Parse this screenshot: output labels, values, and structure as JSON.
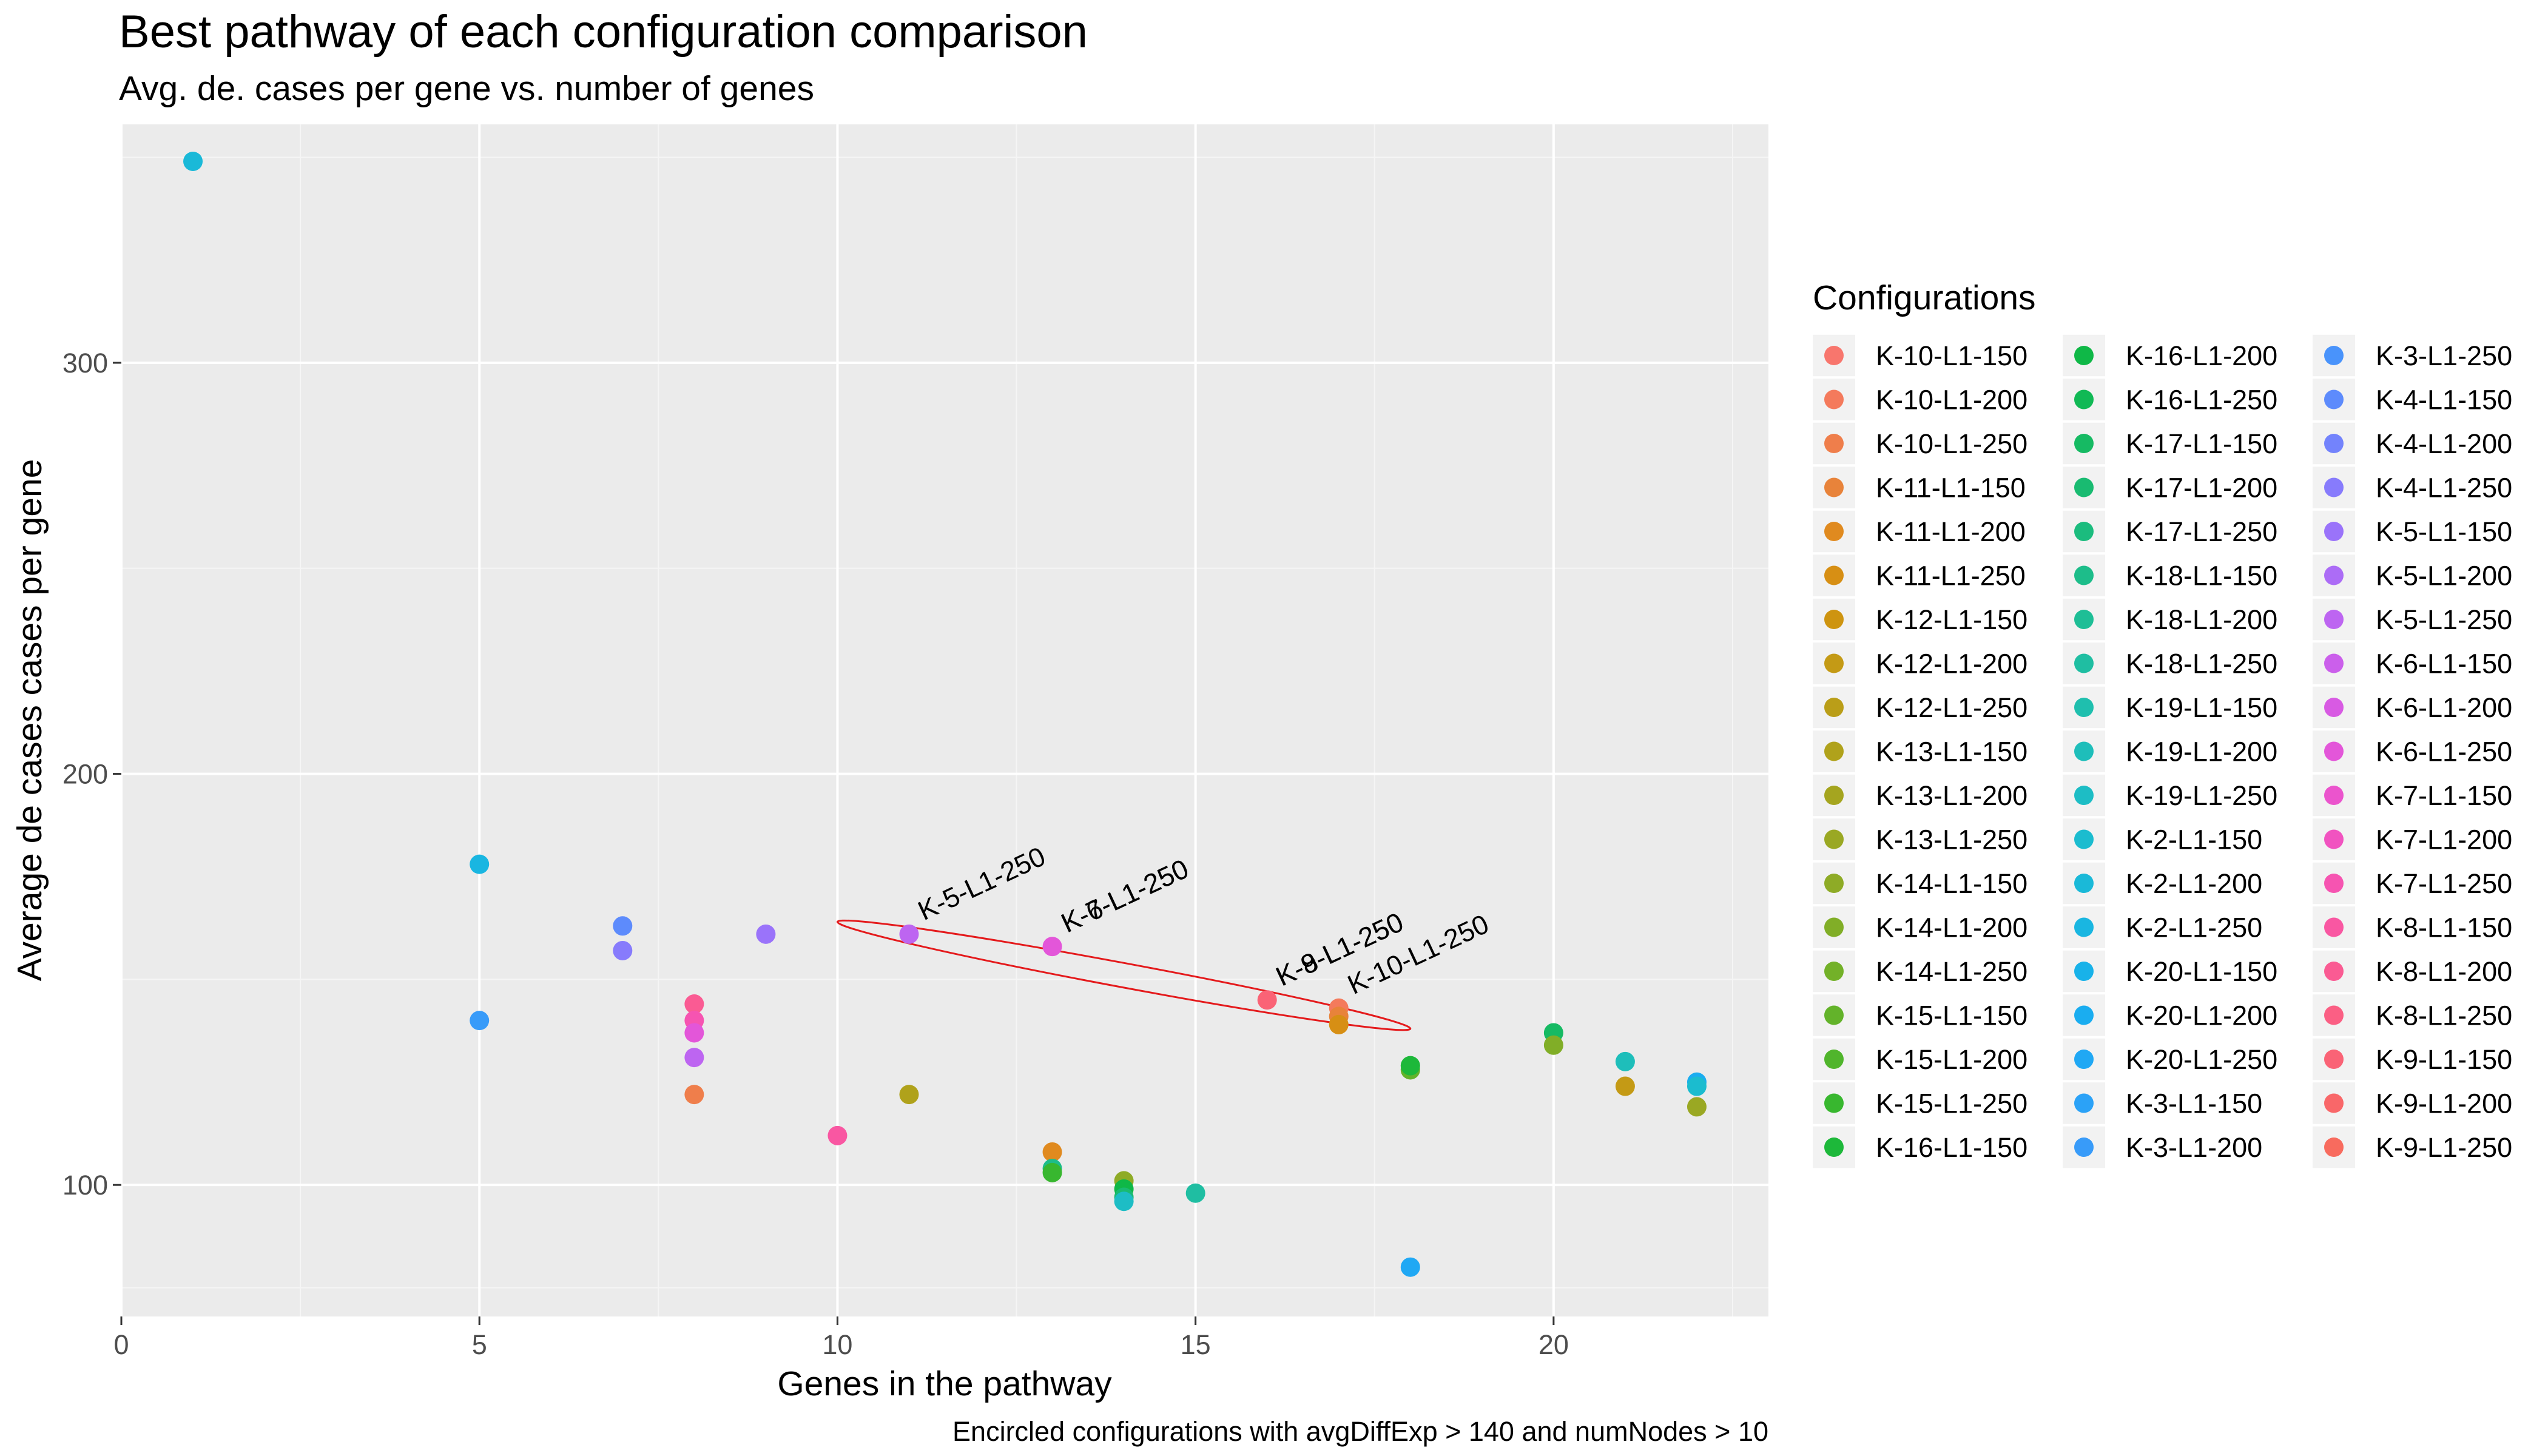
{
  "chart_data": {
    "type": "scatter",
    "title": "Best pathway of each configuration comparison",
    "subtitle": "Avg. de. cases per gene vs. number of genes",
    "xlabel": "Genes in the pathway",
    "ylabel": "Average de cases cases per gene",
    "caption": "Encircled configurations with avgDiffExp > 140 and numNodes > 10",
    "xlim": [
      0,
      23
    ],
    "ylim": [
      68,
      358
    ],
    "x_ticks": [
      0,
      5,
      10,
      15,
      20
    ],
    "x_tick_labels": [
      "0",
      "5",
      "10",
      "15",
      "20"
    ],
    "y_ticks": [
      100,
      200,
      300
    ],
    "y_tick_labels": [
      "100",
      "200",
      "300"
    ],
    "grid": true,
    "legend": {
      "title": "Configurations",
      "placement": "right",
      "columns": 3,
      "entries": [
        {
          "label": "K-10-L1-150",
          "color": "#F8766D"
        },
        {
          "label": "K-10-L1-200",
          "color": "#F47A5C"
        },
        {
          "label": "K-10-L1-250",
          "color": "#EF7E4B"
        },
        {
          "label": "K-11-L1-150",
          "color": "#E8833A"
        },
        {
          "label": "K-11-L1-200",
          "color": "#E08A1F"
        },
        {
          "label": "K-11-L1-250",
          "color": "#D78F14"
        },
        {
          "label": "K-12-L1-150",
          "color": "#CE9410"
        },
        {
          "label": "K-12-L1-200",
          "color": "#C49A15"
        },
        {
          "label": "K-12-L1-250",
          "color": "#BA9E18"
        },
        {
          "label": "K-13-L1-150",
          "color": "#B0A21B"
        },
        {
          "label": "K-13-L1-200",
          "color": "#A5A51F"
        },
        {
          "label": "K-13-L1-250",
          "color": "#9AA823"
        },
        {
          "label": "K-14-L1-150",
          "color": "#8EAB26"
        },
        {
          "label": "K-14-L1-200",
          "color": "#81AE27"
        },
        {
          "label": "K-14-L1-250",
          "color": "#73B128"
        },
        {
          "label": "K-15-L1-150",
          "color": "#63B32A"
        },
        {
          "label": "K-15-L1-200",
          "color": "#50B52C"
        },
        {
          "label": "K-15-L1-250",
          "color": "#38B72F"
        },
        {
          "label": "K-16-L1-150",
          "color": "#1DB83A"
        },
        {
          "label": "K-16-L1-200",
          "color": "#0FB847"
        },
        {
          "label": "K-16-L1-250",
          "color": "#11B955"
        },
        {
          "label": "K-17-L1-150",
          "color": "#16BA63"
        },
        {
          "label": "K-17-L1-200",
          "color": "#19BB71"
        },
        {
          "label": "K-17-L1-250",
          "color": "#1BBC7E"
        },
        {
          "label": "K-18-L1-150",
          "color": "#1DBD8A"
        },
        {
          "label": "K-18-L1-200",
          "color": "#1EBE96"
        },
        {
          "label": "K-18-L1-250",
          "color": "#1FBEA2"
        },
        {
          "label": "K-19-L1-150",
          "color": "#1FBFAE"
        },
        {
          "label": "K-19-L1-200",
          "color": "#1EBEBA"
        },
        {
          "label": "K-19-L1-250",
          "color": "#1DBDC5"
        },
        {
          "label": "K-2-L1-150",
          "color": "#1BBCCF"
        },
        {
          "label": "K-2-L1-200",
          "color": "#1AB9D8"
        },
        {
          "label": "K-2-L1-250",
          "color": "#19B6E1"
        },
        {
          "label": "K-20-L1-150",
          "color": "#18B2E9"
        },
        {
          "label": "K-20-L1-200",
          "color": "#1AADF0"
        },
        {
          "label": "K-20-L1-250",
          "color": "#20A8F4"
        },
        {
          "label": "K-3-L1-150",
          "color": "#2BA2F7"
        },
        {
          "label": "K-3-L1-200",
          "color": "#389BF9"
        },
        {
          "label": "K-3-L1-250",
          "color": "#4993FB"
        },
        {
          "label": "K-4-L1-150",
          "color": "#5D8BFC"
        },
        {
          "label": "K-4-L1-200",
          "color": "#7383FC"
        },
        {
          "label": "K-4-L1-250",
          "color": "#877BFC"
        },
        {
          "label": "K-5-L1-150",
          "color": "#9A73FA"
        },
        {
          "label": "K-5-L1-200",
          "color": "#AC6CF6"
        },
        {
          "label": "K-5-L1-250",
          "color": "#BD65F1"
        },
        {
          "label": "K-6-L1-150",
          "color": "#CB5FEB"
        },
        {
          "label": "K-6-L1-200",
          "color": "#D85AE3"
        },
        {
          "label": "K-6-L1-250",
          "color": "#E356D9"
        },
        {
          "label": "K-7-L1-150",
          "color": "#EB54CD"
        },
        {
          "label": "K-7-L1-200",
          "color": "#F153C0"
        },
        {
          "label": "K-7-L1-250",
          "color": "#F654B1"
        },
        {
          "label": "K-8-L1-150",
          "color": "#F957A2"
        },
        {
          "label": "K-8-L1-200",
          "color": "#FA5B93"
        },
        {
          "label": "K-8-L1-250",
          "color": "#FB5F84"
        },
        {
          "label": "K-9-L1-150",
          "color": "#FA6376"
        },
        {
          "label": "K-9-L1-200",
          "color": "#F96769"
        },
        {
          "label": "K-9-L1-250",
          "color": "#F86B5E"
        }
      ]
    },
    "points": [
      {
        "x": 1,
        "y": 349,
        "color": "#1AB9D8"
      },
      {
        "x": 5,
        "y": 178,
        "color": "#19B6E1"
      },
      {
        "x": 5,
        "y": 140,
        "color": "#389BF9"
      },
      {
        "x": 7,
        "y": 163,
        "color": "#5D8BFC"
      },
      {
        "x": 7,
        "y": 157,
        "color": "#877BFC"
      },
      {
        "x": 8,
        "y": 144,
        "color": "#FA5B93"
      },
      {
        "x": 8,
        "y": 140,
        "color": "#F654B1"
      },
      {
        "x": 8,
        "y": 137,
        "color": "#E356D9"
      },
      {
        "x": 8,
        "y": 131,
        "color": "#BD65F1"
      },
      {
        "x": 8,
        "y": 122,
        "color": "#EF7E4B"
      },
      {
        "x": 9,
        "y": 161,
        "color": "#9A73FA"
      },
      {
        "x": 10,
        "y": 112,
        "color": "#F957A2"
      },
      {
        "x": 11,
        "y": 161,
        "color": "#BD65F1"
      },
      {
        "x": 11,
        "y": 122,
        "color": "#B0A21B"
      },
      {
        "x": 13,
        "y": 158,
        "color": "#E356D9"
      },
      {
        "x": 13,
        "y": 108,
        "color": "#E08A1F"
      },
      {
        "x": 13,
        "y": 104,
        "color": "#1DBD8A"
      },
      {
        "x": 13,
        "y": 103,
        "color": "#38B72F"
      },
      {
        "x": 14,
        "y": 101,
        "color": "#8EAB26"
      },
      {
        "x": 14,
        "y": 99,
        "color": "#0FB847"
      },
      {
        "x": 14,
        "y": 97,
        "color": "#19BB71"
      },
      {
        "x": 14,
        "y": 96,
        "color": "#1DBDC5"
      },
      {
        "x": 15,
        "y": 98,
        "color": "#1FBEA2"
      },
      {
        "x": 16,
        "y": 145,
        "color": "#FA6376"
      },
      {
        "x": 17,
        "y": 143,
        "color": "#F47A5C"
      },
      {
        "x": 17,
        "y": 141,
        "color": "#E8833A"
      },
      {
        "x": 17,
        "y": 139,
        "color": "#D78F14"
      },
      {
        "x": 18,
        "y": 128,
        "color": "#63B32A"
      },
      {
        "x": 18,
        "y": 129,
        "color": "#1DB83A"
      },
      {
        "x": 18,
        "y": 80,
        "color": "#20A8F4"
      },
      {
        "x": 20,
        "y": 137,
        "color": "#16BA63"
      },
      {
        "x": 20,
        "y": 134,
        "color": "#81AE27"
      },
      {
        "x": 21,
        "y": 130,
        "color": "#1EBEBA"
      },
      {
        "x": 21,
        "y": 124,
        "color": "#C49A15"
      },
      {
        "x": 22,
        "y": 125,
        "color": "#1AADF0"
      },
      {
        "x": 22,
        "y": 124,
        "color": "#1BBCCF"
      },
      {
        "x": 22,
        "y": 119,
        "color": "#9AA823"
      }
    ],
    "annotations": [
      {
        "text": "K-5-L1-250",
        "x": 11,
        "y": 161
      },
      {
        "text": "K-6-L1-250",
        "x": 13,
        "y": 158
      },
      {
        "text": "K-7-L1-250",
        "x": 13,
        "y": 158
      },
      {
        "text": "K-8-L1-250",
        "x": 16,
        "y": 145
      },
      {
        "text": "K-9-L1-250",
        "x": 16,
        "y": 145
      },
      {
        "text": "K-10-L1-250",
        "x": 17,
        "y": 143
      }
    ],
    "ellipse": {
      "x_from": 10,
      "y_from": 164,
      "x_to": 18,
      "y_to": 138,
      "color": "#E41A1C"
    }
  }
}
